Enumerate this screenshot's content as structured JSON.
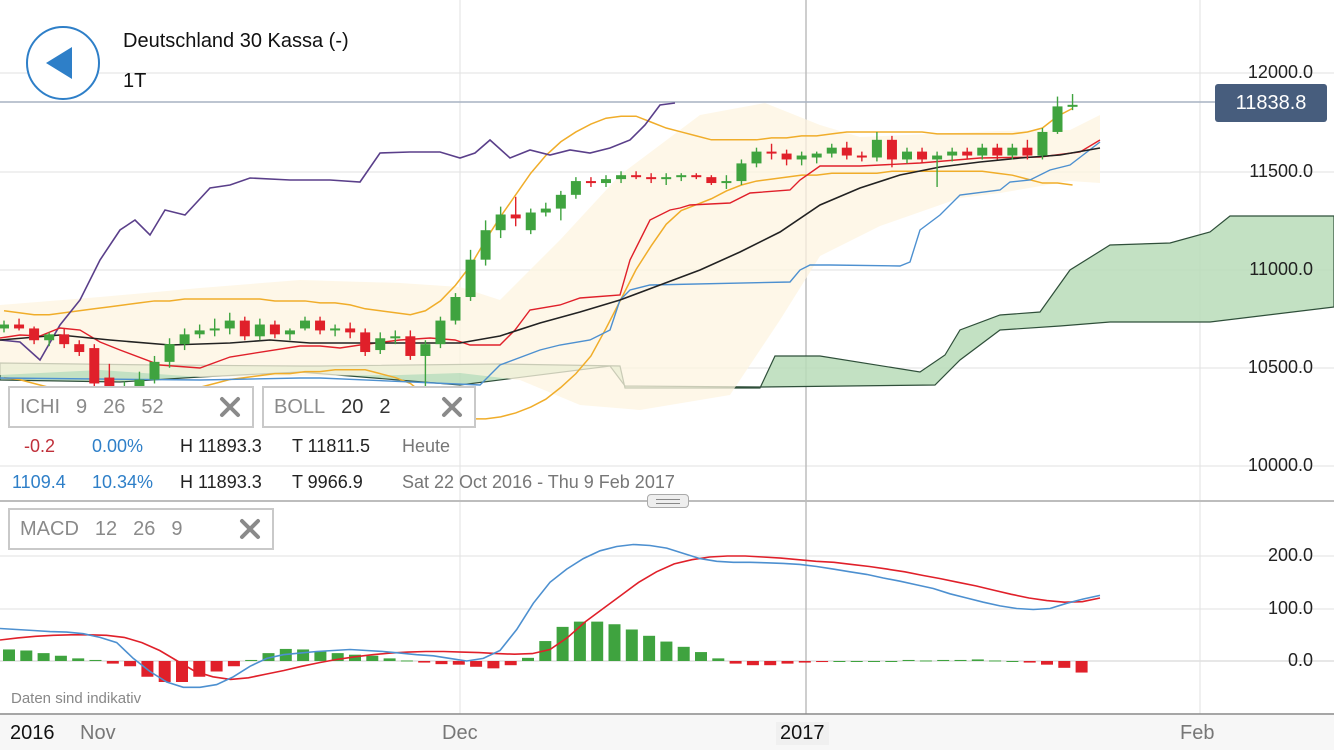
{
  "header": {
    "title": "Deutschland 30 Kassa (-)",
    "period": "1T"
  },
  "colors": {
    "up": "#3fa33f",
    "down": "#e0202a",
    "ichimoku_cloud": "#b8dcb8",
    "bollinger": "#f0ad2a",
    "tenkan": "#e0202a",
    "kijun": "#4d90d0",
    "chikou": "#5a3f8a",
    "sma": "#222222",
    "price_badge": "#475d7d"
  },
  "indicators": {
    "ichi": {
      "label": "ICHI",
      "p1": "9",
      "p2": "26",
      "p3": "52"
    },
    "boll": {
      "label": "BOLL",
      "p1": "20",
      "p2": "2"
    },
    "macd": {
      "label": "MACD",
      "p1": "12",
      "p2": "26",
      "p3": "9"
    }
  },
  "stats": {
    "row1": {
      "change": "-0.2",
      "pct": "0.00%",
      "high": "H 11893.3",
      "low": "T 11811.5",
      "range": "Heute"
    },
    "row2": {
      "change": "1109.4",
      "pct": "10.34%",
      "high": "H 11893.3",
      "low": "T 9966.9",
      "range": "Sat 22 Oct 2016 - Thu 9 Feb 2017"
    }
  },
  "price_axis": [
    "12000.0",
    "11500.0",
    "11000.0",
    "10500.0",
    "10000.0"
  ],
  "current_price": "11838.8",
  "macd_axis": [
    "200.0",
    "100.0",
    "0.0"
  ],
  "x_axis": {
    "y2016": "2016",
    "nov": "Nov",
    "dec": "Dec",
    "y2017": "2017",
    "feb": "Feb"
  },
  "footer_note": "Daten sind indikativ",
  "chart_data": {
    "type": "candlestick",
    "ylim": [
      10000,
      12000
    ],
    "candles": [
      [
        10700,
        10740,
        10680,
        10720
      ],
      [
        10720,
        10750,
        10690,
        10700
      ],
      [
        10700,
        10710,
        10620,
        10640
      ],
      [
        10640,
        10680,
        10610,
        10670
      ],
      [
        10670,
        10700,
        10600,
        10620
      ],
      [
        10620,
        10640,
        10560,
        10580
      ],
      [
        10600,
        10620,
        10380,
        10420
      ],
      [
        10450,
        10520,
        10300,
        10350
      ],
      [
        10350,
        10430,
        10320,
        10400
      ],
      [
        10400,
        10480,
        10380,
        10440
      ],
      [
        10440,
        10560,
        10420,
        10530
      ],
      [
        10530,
        10650,
        10500,
        10620
      ],
      [
        10620,
        10700,
        10590,
        10670
      ],
      [
        10670,
        10720,
        10650,
        10690
      ],
      [
        10690,
        10750,
        10660,
        10700
      ],
      [
        10700,
        10780,
        10670,
        10740
      ],
      [
        10740,
        10760,
        10640,
        10660
      ],
      [
        10660,
        10750,
        10640,
        10720
      ],
      [
        10720,
        10740,
        10650,
        10670
      ],
      [
        10670,
        10700,
        10640,
        10690
      ],
      [
        10700,
        10760,
        10690,
        10740
      ],
      [
        10740,
        10760,
        10670,
        10690
      ],
      [
        10690,
        10720,
        10660,
        10700
      ],
      [
        10700,
        10730,
        10650,
        10680
      ],
      [
        10680,
        10700,
        10560,
        10580
      ],
      [
        10590,
        10680,
        10570,
        10650
      ],
      [
        10650,
        10690,
        10620,
        10660
      ],
      [
        10660,
        10690,
        10540,
        10560
      ],
      [
        10560,
        10640,
        10360,
        10620
      ],
      [
        10620,
        10760,
        10600,
        10740
      ],
      [
        10740,
        10880,
        10720,
        10860
      ],
      [
        10860,
        11100,
        10840,
        11050
      ],
      [
        11050,
        11250,
        11020,
        11200
      ],
      [
        11200,
        11320,
        11160,
        11280
      ],
      [
        11280,
        11370,
        11220,
        11260
      ],
      [
        11200,
        11310,
        11180,
        11290
      ],
      [
        11290,
        11340,
        11270,
        11310
      ],
      [
        11310,
        11400,
        11250,
        11380
      ],
      [
        11380,
        11470,
        11360,
        11450
      ],
      [
        11450,
        11470,
        11420,
        11440
      ],
      [
        11440,
        11480,
        11420,
        11460
      ],
      [
        11460,
        11500,
        11440,
        11480
      ],
      [
        11480,
        11500,
        11460,
        11470
      ],
      [
        11470,
        11490,
        11440,
        11460
      ],
      [
        11460,
        11490,
        11430,
        11470
      ],
      [
        11470,
        11490,
        11450,
        11480
      ],
      [
        11480,
        11490,
        11460,
        11470
      ],
      [
        11470,
        11480,
        11430,
        11440
      ],
      [
        11440,
        11480,
        11410,
        11450
      ],
      [
        11450,
        11560,
        11430,
        11540
      ],
      [
        11540,
        11620,
        11520,
        11600
      ],
      [
        11600,
        11640,
        11560,
        11590
      ],
      [
        11590,
        11610,
        11530,
        11560
      ],
      [
        11560,
        11600,
        11530,
        11580
      ],
      [
        11570,
        11600,
        11540,
        11590
      ],
      [
        11590,
        11640,
        11570,
        11620
      ],
      [
        11620,
        11650,
        11560,
        11580
      ],
      [
        11580,
        11600,
        11550,
        11570
      ],
      [
        11570,
        11700,
        11550,
        11660
      ],
      [
        11660,
        11680,
        11520,
        11560
      ],
      [
        11560,
        11620,
        11540,
        11600
      ],
      [
        11600,
        11620,
        11540,
        11560
      ],
      [
        11560,
        11600,
        11420,
        11580
      ],
      [
        11580,
        11620,
        11550,
        11600
      ],
      [
        11600,
        11620,
        11560,
        11580
      ],
      [
        11580,
        11640,
        11560,
        11620
      ],
      [
        11620,
        11640,
        11560,
        11580
      ],
      [
        11580,
        11640,
        11560,
        11620
      ],
      [
        11620,
        11660,
        11560,
        11580
      ],
      [
        11580,
        11720,
        11560,
        11700
      ],
      [
        11700,
        11880,
        11690,
        11830
      ],
      [
        11830,
        11893,
        11811,
        11838
      ]
    ],
    "bollinger_upper": [
      10790,
      10780,
      10770,
      10770,
      10780,
      10790,
      10800,
      10810,
      10820,
      10830,
      10840,
      10840,
      10850,
      10850,
      10850,
      10850,
      10850,
      10850,
      10840,
      10840,
      10840,
      10830,
      10830,
      10820,
      10800,
      10790,
      10780,
      10770,
      10790,
      10840,
      10920,
      11020,
      11150,
      11270,
      11380,
      11490,
      11580,
      11650,
      11700,
      11740,
      11770,
      11780,
      11780,
      11750,
      11720,
      11700,
      11680,
      11660,
      11660,
      11660,
      11660,
      11670,
      11670,
      11680,
      11680,
      11690,
      11700,
      11700,
      11700,
      11700,
      11700,
      11700,
      11690,
      11690,
      11690,
      11690,
      11690,
      11690,
      11700,
      11720,
      11780,
      11820
    ],
    "bollinger_lower": [
      10450,
      10440,
      10420,
      10400,
      10390,
      10380,
      10370,
      10360,
      10350,
      10350,
      10350,
      10360,
      10380,
      10400,
      10420,
      10440,
      10450,
      10460,
      10470,
      10470,
      10480,
      10480,
      10490,
      10490,
      10490,
      10470,
      10450,
      10420,
      10360,
      10300,
      10260,
      10240,
      10240,
      10250,
      10270,
      10300,
      10340,
      10400,
      10470,
      10560,
      10700,
      10850,
      11000,
      11120,
      11230,
      11300,
      11330,
      11360,
      11400,
      11430,
      11450,
      11460,
      11470,
      11480,
      11480,
      11490,
      11490,
      11490,
      11490,
      11500,
      11500,
      11500,
      11500,
      11500,
      11500,
      11500,
      11490,
      11480,
      11460,
      11440,
      11440,
      11430
    ],
    "sma": [
      10620,
      10610,
      10610,
      10600,
      10600,
      10590,
      10590,
      10590,
      10590,
      10590,
      10590,
      10600,
      10610,
      10620,
      10630,
      10640,
      10650,
      10650,
      10650,
      10650,
      10660,
      10660,
      10660,
      10660,
      10650,
      10630,
      10620,
      10600,
      10580,
      10570,
      10580,
      10600,
      10650,
      10700,
      10760,
      10820,
      10880,
      10940,
      11000,
      11060,
      11130,
      11190,
      11250,
      11310,
      11360,
      11400,
      11430,
      11460,
      11490,
      11510,
      11530,
      11540,
      11550,
      11560,
      11560,
      11570,
      11580,
      11580,
      11590,
      11590,
      11600,
      11600,
      11600,
      11600,
      11600,
      11600,
      11610,
      11620,
      11630,
      11650,
      11680,
      11700
    ],
    "macd_line": [
      62,
      60,
      58,
      56,
      55,
      52,
      45,
      35,
      5,
      -20,
      -40,
      -50,
      -50,
      -45,
      -30,
      -10,
      5,
      12,
      15,
      18,
      20,
      22,
      20,
      18,
      15,
      12,
      10,
      5,
      0,
      5,
      20,
      60,
      110,
      150,
      175,
      195,
      210,
      218,
      222,
      220,
      215,
      205,
      195,
      190,
      188,
      188,
      187,
      186,
      184,
      180,
      175,
      170,
      165,
      158,
      152,
      145,
      138,
      128,
      120,
      112,
      105,
      100,
      98,
      100,
      110,
      118,
      125
    ],
    "signal_line": [
      40,
      44,
      47,
      49,
      50,
      50,
      49,
      45,
      35,
      20,
      0,
      -20,
      -30,
      -35,
      -32,
      -25,
      -18,
      -10,
      -3,
      3,
      8,
      12,
      15,
      17,
      18,
      18,
      17,
      16,
      14,
      13,
      14,
      22,
      45,
      75,
      100,
      125,
      150,
      170,
      185,
      193,
      198,
      200,
      200,
      198,
      196,
      193,
      190,
      188,
      184,
      180,
      175,
      170,
      163,
      157,
      150,
      143,
      135,
      127,
      120,
      115,
      112,
      113,
      120
    ],
    "histogram": [
      22,
      20,
      15,
      10,
      5,
      2,
      -5,
      -10,
      -30,
      -40,
      -40,
      -30,
      -20,
      -10,
      2,
      15,
      23,
      22,
      18,
      15,
      12,
      10,
      5,
      1,
      -3,
      -6,
      -7,
      -11,
      -14,
      -8,
      6,
      38,
      65,
      75,
      75,
      70,
      60,
      48,
      37,
      27,
      17,
      5,
      -5,
      -8,
      -8,
      -5,
      -3,
      -2,
      0,
      0,
      0,
      0,
      2,
      1,
      2,
      2,
      3,
      1,
      0,
      -3,
      -7,
      -13,
      -22
    ]
  }
}
